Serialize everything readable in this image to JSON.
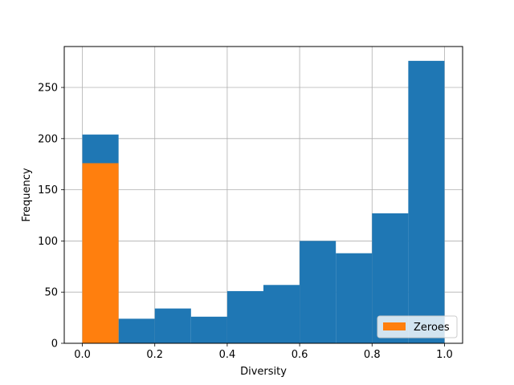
{
  "chart_data": {
    "type": "bar",
    "xlabel": "Diversity",
    "ylabel": "Frequency",
    "xlim": [
      -0.05,
      1.05
    ],
    "ylim": [
      0,
      290
    ],
    "xticks": [
      "0.0",
      "0.2",
      "0.4",
      "0.6",
      "0.8",
      "1.0"
    ],
    "yticks": [
      "0",
      "50",
      "100",
      "150",
      "200",
      "250"
    ],
    "grid": true,
    "legend": {
      "position": "bottom-right",
      "entries": [
        "Zeroes"
      ]
    },
    "series": [
      {
        "name": "",
        "color": "#1f77b4",
        "bins": [
          {
            "x0": 0.0,
            "x1": 0.1,
            "value": 204
          },
          {
            "x0": 0.1,
            "x1": 0.2,
            "value": 24
          },
          {
            "x0": 0.2,
            "x1": 0.3,
            "value": 34
          },
          {
            "x0": 0.3,
            "x1": 0.4,
            "value": 26
          },
          {
            "x0": 0.4,
            "x1": 0.5,
            "value": 51
          },
          {
            "x0": 0.5,
            "x1": 0.6,
            "value": 57
          },
          {
            "x0": 0.6,
            "x1": 0.7,
            "value": 100
          },
          {
            "x0": 0.7,
            "x1": 0.8,
            "value": 88
          },
          {
            "x0": 0.8,
            "x1": 0.9,
            "value": 127
          },
          {
            "x0": 0.9,
            "x1": 1.0,
            "value": 276
          }
        ]
      },
      {
        "name": "Zeroes",
        "color": "#ff7f0e",
        "bins": [
          {
            "x0": 0.0,
            "x1": 0.1,
            "value": 176
          }
        ]
      }
    ]
  }
}
